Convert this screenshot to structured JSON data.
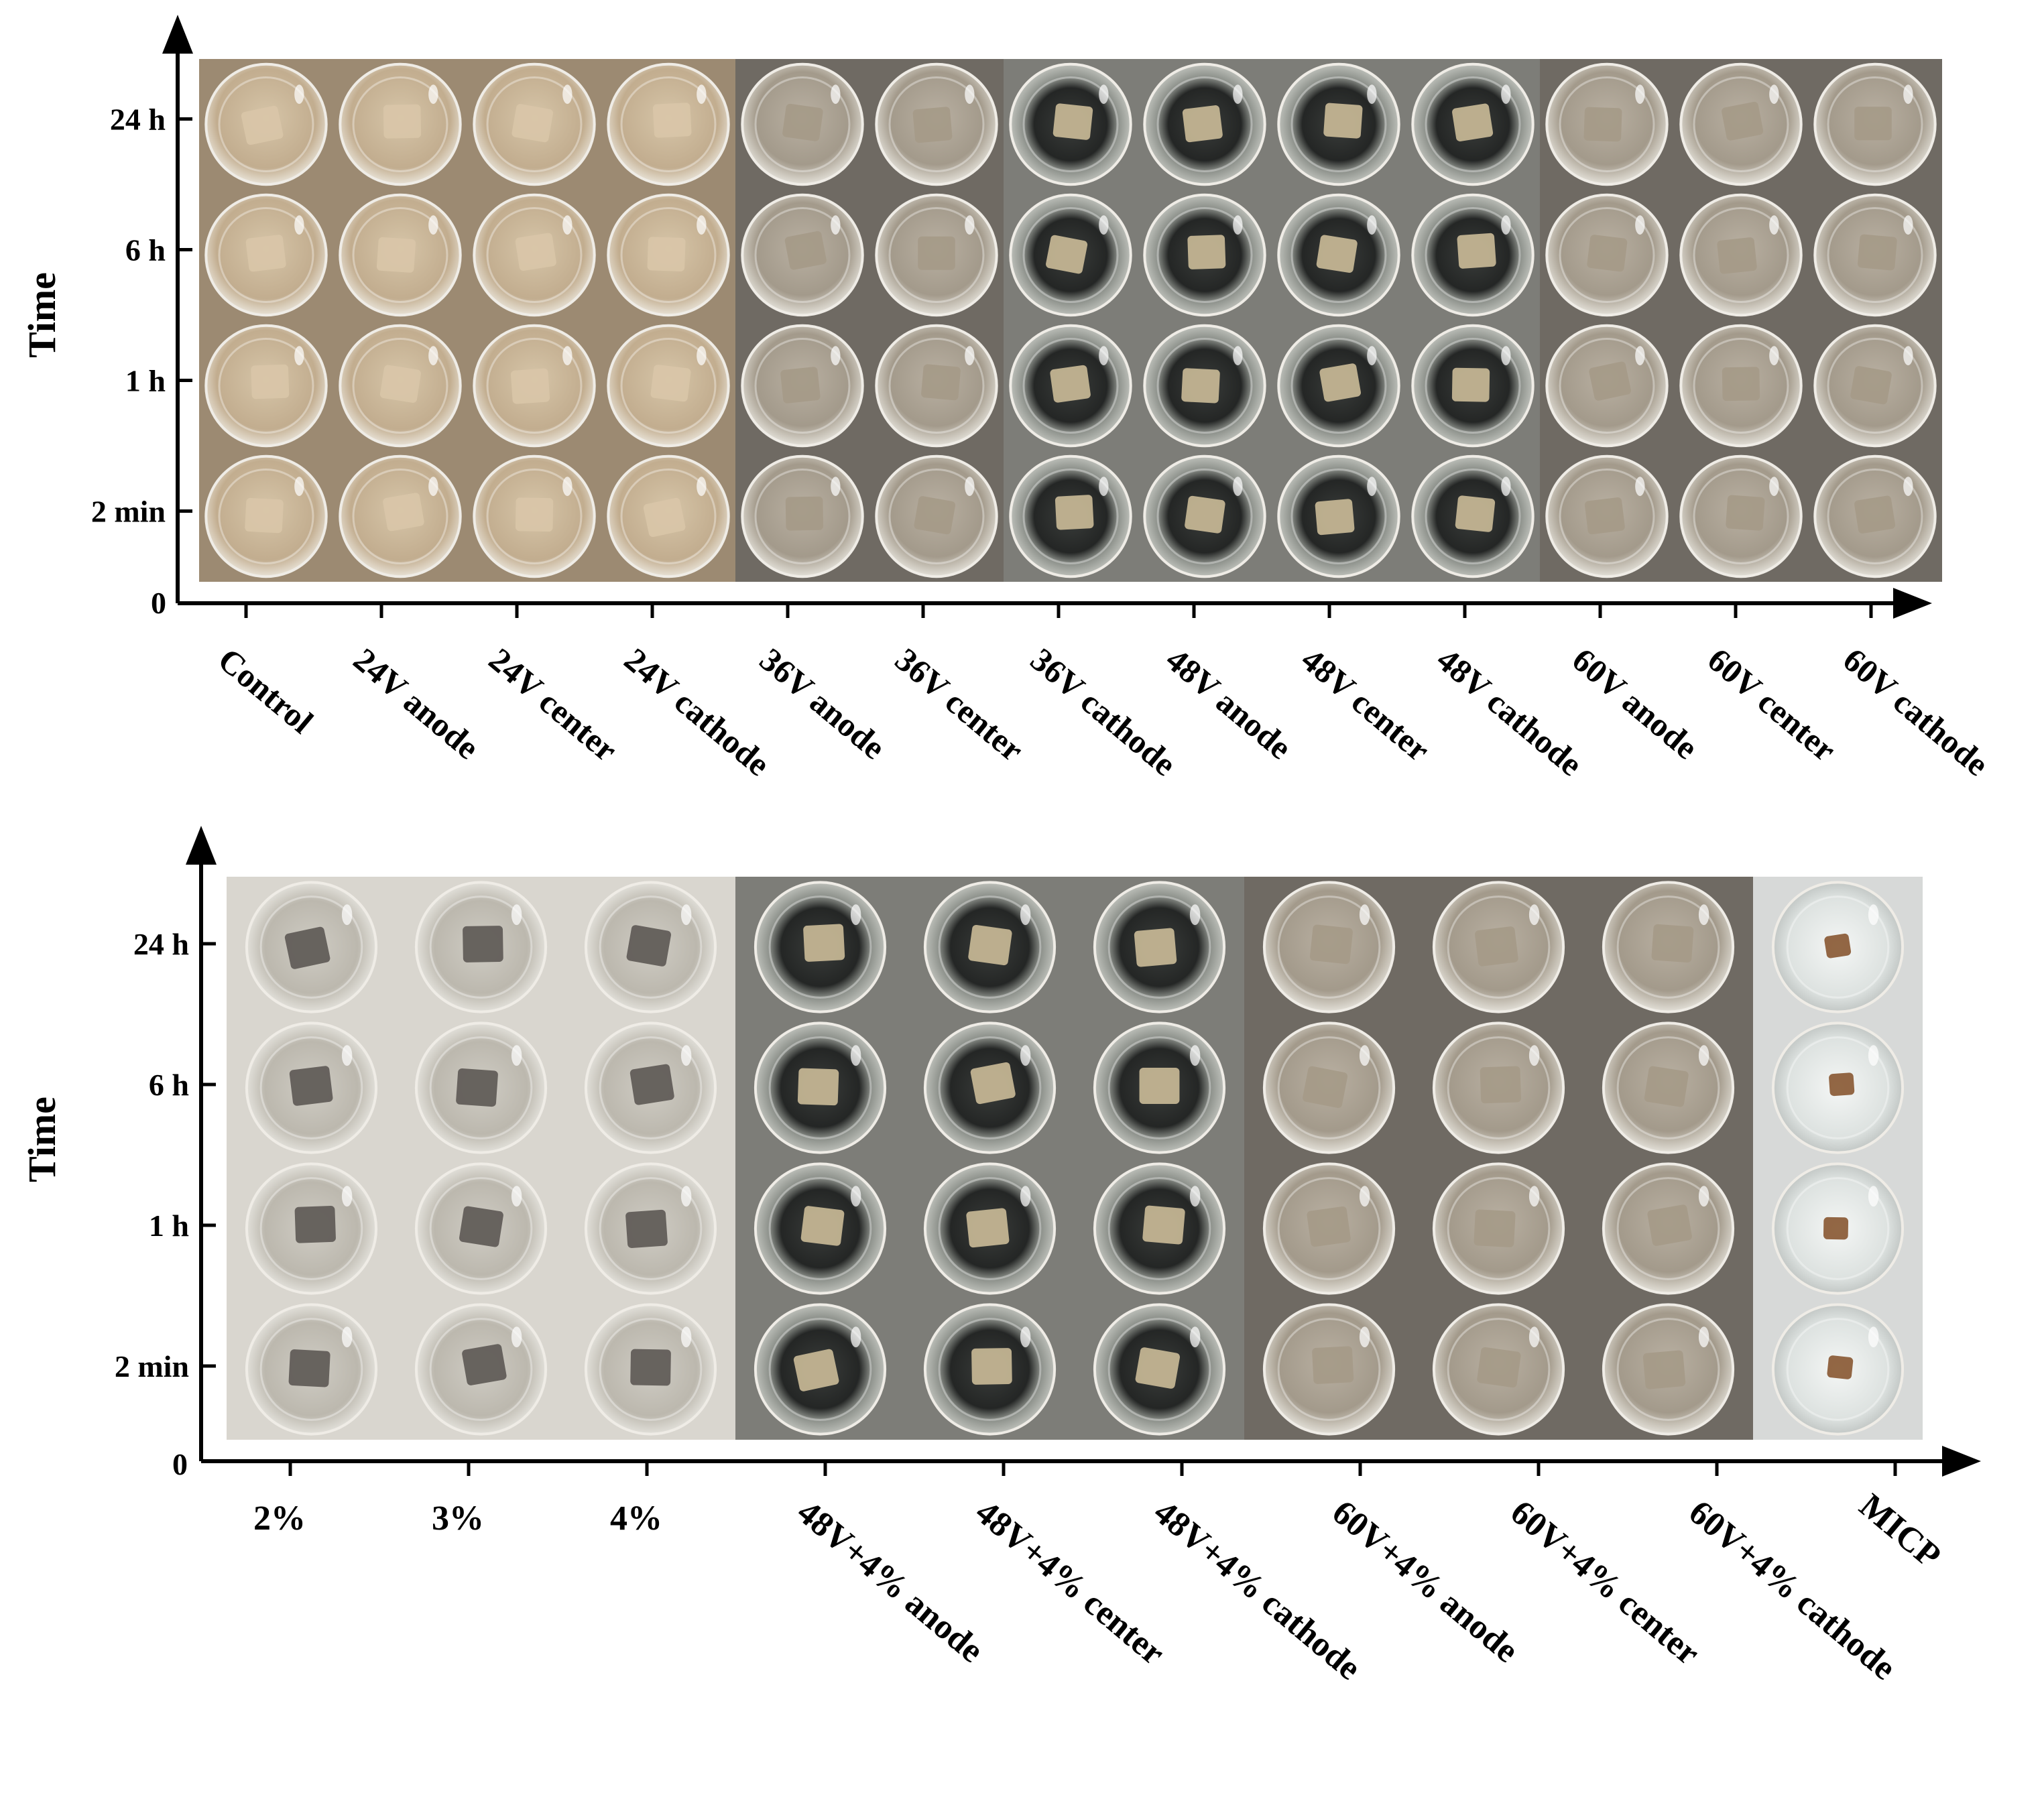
{
  "panels": [
    {
      "y_axis_label": "Time",
      "origin_label": "0",
      "time_labels": [
        "24 h",
        "6 h",
        "1 h",
        "2 min"
      ],
      "columns": [
        "Control",
        "24V anode",
        "24V center",
        "24V cathode",
        "36V anode",
        "36V center",
        "36V cathode",
        "48V anode",
        "48V center",
        "48V cathode",
        "60V anode",
        "60V center",
        "60V cathode"
      ],
      "column_styles": [
        "beige",
        "beige",
        "beige",
        "beige",
        "gray",
        "gray",
        "dark",
        "dark",
        "dark",
        "dark",
        "gray",
        "gray",
        "gray"
      ]
    },
    {
      "y_axis_label": "Time",
      "origin_label": "0",
      "time_labels": [
        "24 h",
        "6 h",
        "1 h",
        "2 min"
      ],
      "columns": [
        "2%",
        "3%",
        "4%",
        "48V+4% anode",
        "48V+4% center",
        "48V+4% cathode",
        "60V+4% anode",
        "60V+4% center",
        "60V+4% cathode",
        "MICP"
      ],
      "column_styles": [
        "light",
        "light",
        "light",
        "dark",
        "dark",
        "dark",
        "gray",
        "gray",
        "gray",
        "micp"
      ]
    }
  ],
  "colors": {
    "axis": "#000000",
    "beige_bg": "#9c8a72",
    "beige_dish": "#cbb89c",
    "beige_sample": "#d9c6a8",
    "gray_bg": "#6f6a63",
    "gray_dish": "#b4ab9d",
    "gray_sample": "#a59a88",
    "dark_bg": "#7d7d78",
    "dark_dish": "#2a2c2b",
    "dark_sample": "#c8b896",
    "light_bg": "#d9d6cf",
    "light_dish": "#c6c3bb",
    "light_sample": "#5e5a56",
    "micp_bg": "#d7d9d8",
    "micp_dish": "#eef1f0",
    "micp_sample": "#8a5a35"
  }
}
